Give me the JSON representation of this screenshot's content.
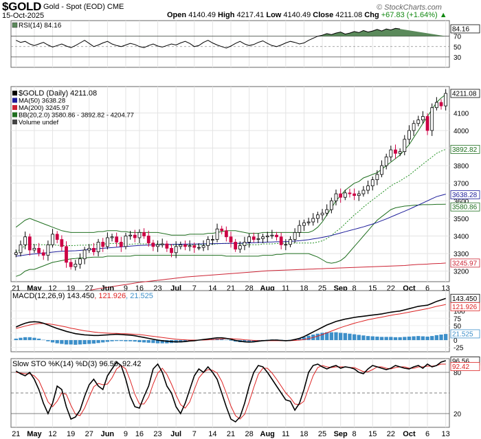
{
  "header": {
    "symbol": "$GOLD",
    "description": "Gold - Spot (EOD)",
    "exchange": "CME",
    "date": "15-Oct-2025",
    "open_label": "Open",
    "open": "4140.49",
    "high_label": "High",
    "high": "4217.41",
    "low_label": "Low",
    "low": "4140.49",
    "close_label": "Close",
    "close": "4211.08",
    "chg_label": "Chg",
    "chg": "+67.83 (+1.64%)",
    "watermark": "© StockCharts.com"
  },
  "colors": {
    "up": "#000000",
    "down": "#cc0044",
    "ma50": "#1a1a99",
    "ma200": "#cc2233",
    "bb": "#1e6e1e",
    "bbmid": "#1e8e1e",
    "rsi": "#000000",
    "rsi_fill": "#5b8a5b",
    "macd": "#000000",
    "signal": "#dd2222",
    "hist": "#3d8fc9",
    "stok": "#000000",
    "stod": "#dd2222"
  },
  "chart_data": [
    {
      "type": "line",
      "panel": "rsi",
      "legend": "RSI(14) 84.16",
      "current": "84.16",
      "y_ticks": [
        "70",
        "50",
        "30"
      ],
      "levels": [
        70,
        30
      ],
      "ylim": [
        10,
        100
      ],
      "values": [
        62,
        58,
        60,
        55,
        52,
        55,
        58,
        53,
        49,
        52,
        55,
        51,
        48,
        52,
        57,
        62,
        56,
        50,
        53,
        57,
        60,
        55,
        52,
        50,
        53,
        56,
        54,
        50,
        48,
        52,
        55,
        51,
        49,
        52,
        55,
        53,
        57,
        60,
        56,
        50,
        52,
        58,
        62,
        57,
        53,
        50,
        47,
        51,
        56,
        60,
        55,
        52,
        54,
        58,
        61,
        56,
        52,
        50,
        53,
        57,
        60,
        58,
        55,
        57,
        62,
        66,
        70,
        72,
        75,
        73,
        76,
        78,
        74,
        76,
        79,
        77,
        81,
        78,
        80,
        83,
        80,
        84,
        82,
        85,
        84
      ]
    },
    {
      "type": "candlestick",
      "panel": "price",
      "legend": [
        "$GOLD (Daily) 4211.08",
        "MA(50) 3638.28",
        "MA(200) 3245.97",
        "BB(20,2.0) 3580.86 - 3892.82 - 4204.77",
        "Volume undef"
      ],
      "y_ticks": [
        "4100",
        "4000",
        "3900",
        "3800",
        "3700",
        "3600",
        "3500",
        "3400",
        "3300",
        "3200"
      ],
      "tags": {
        "close": "4211.08",
        "bb_mid": "3892.82",
        "ma50": "3638.28",
        "bb_low": "3580.86",
        "ma200": "3245.97"
      },
      "ylim": [
        3140,
        4250
      ],
      "x_labels": [
        "21",
        "May",
        "12",
        "19",
        "27",
        "Jun",
        "9",
        "16",
        "23",
        "Jul",
        "7",
        "14",
        "21",
        "28",
        "Aug",
        "11",
        "18",
        "25",
        "Sep",
        "8",
        "15",
        "22",
        "Oct",
        "6",
        "13"
      ],
      "close": [
        3305,
        3350,
        3395,
        3320,
        3330,
        3305,
        3290,
        3350,
        3410,
        3380,
        3340,
        3250,
        3225,
        3240,
        3270,
        3320,
        3330,
        3310,
        3365,
        3340,
        3390,
        3395,
        3365,
        3340,
        3400,
        3405,
        3390,
        3420,
        3400,
        3360,
        3340,
        3350,
        3355,
        3330,
        3305,
        3340,
        3350,
        3340,
        3345,
        3335,
        3335,
        3345,
        3380,
        3380,
        3440,
        3430,
        3395,
        3365,
        3325,
        3345,
        3365,
        3395,
        3380,
        3385,
        3395,
        3400,
        3405,
        3395,
        3350,
        3352,
        3380,
        3420,
        3460,
        3475,
        3480,
        3500,
        3520,
        3530,
        3550,
        3600,
        3640,
        3620,
        3645,
        3640,
        3630,
        3640,
        3660,
        3685,
        3720,
        3750,
        3800,
        3850,
        3890,
        3870,
        3880,
        3950,
        4000,
        4040,
        4060,
        4080,
        4000,
        4130,
        4160,
        4140,
        4211
      ],
      "ma50": [
        3285,
        3288,
        3292,
        3295,
        3298,
        3300,
        3302,
        3305,
        3308,
        3311,
        3313,
        3314,
        3315,
        3316,
        3318,
        3320,
        3323,
        3325,
        3328,
        3330,
        3332,
        3334,
        3336,
        3338,
        3340,
        3342,
        3344,
        3346,
        3347,
        3348,
        3349,
        3350,
        3351,
        3352,
        3352,
        3353,
        3353,
        3354,
        3354,
        3354,
        3355,
        3355,
        3356,
        3356,
        3357,
        3357,
        3358,
        3358,
        3358,
        3359,
        3360,
        3361,
        3362,
        3363,
        3364,
        3365,
        3366,
        3367,
        3367,
        3368,
        3369,
        3371,
        3373,
        3376,
        3379,
        3383,
        3387,
        3392,
        3397,
        3403,
        3410,
        3417,
        3424,
        3431,
        3438,
        3445,
        3452,
        3460,
        3468,
        3477,
        3487,
        3497,
        3508,
        3519,
        3530,
        3541,
        3552,
        3564,
        3576,
        3588,
        3600,
        3612,
        3624,
        3631,
        3638
      ],
      "ma200": [
        3000,
        3006,
        3012,
        3018,
        3024,
        3030,
        3036,
        3042,
        3048,
        3054,
        3060,
        3065,
        3070,
        3075,
        3080,
        3085,
        3090,
        3095,
        3100,
        3104,
        3108,
        3112,
        3116,
        3120,
        3124,
        3128,
        3132,
        3136,
        3139,
        3142,
        3145,
        3148,
        3151,
        3154,
        3157,
        3160,
        3163,
        3166,
        3168,
        3170,
        3172,
        3174,
        3176,
        3178,
        3180,
        3182,
        3184,
        3186,
        3188,
        3190,
        3192,
        3194,
        3196,
        3198,
        3200,
        3202,
        3203,
        3204,
        3205,
        3206,
        3207,
        3208,
        3209,
        3210,
        3211,
        3212,
        3213,
        3214,
        3215,
        3216,
        3217,
        3218,
        3219,
        3220,
        3221,
        3222,
        3223,
        3224,
        3225,
        3226,
        3227,
        3228,
        3229,
        3230,
        3231,
        3232,
        3234,
        3236,
        3238,
        3239,
        3240,
        3242,
        3243,
        3244,
        3246
      ],
      "bb_upper": [
        3450,
        3470,
        3490,
        3500,
        3490,
        3480,
        3470,
        3460,
        3450,
        3440,
        3430,
        3425,
        3420,
        3420,
        3420,
        3420,
        3420,
        3420,
        3425,
        3425,
        3430,
        3430,
        3430,
        3425,
        3425,
        3420,
        3420,
        3420,
        3420,
        3420,
        3420,
        3420,
        3415,
        3410,
        3405,
        3405,
        3405,
        3405,
        3410,
        3410,
        3410,
        3410,
        3415,
        3415,
        3420,
        3425,
        3430,
        3430,
        3430,
        3425,
        3420,
        3415,
        3415,
        3415,
        3420,
        3420,
        3420,
        3420,
        3420,
        3420,
        3420,
        3420,
        3420,
        3420,
        3420,
        3430,
        3450,
        3480,
        3520,
        3560,
        3600,
        3630,
        3660,
        3680,
        3700,
        3710,
        3730,
        3740,
        3750,
        3760,
        3780,
        3800,
        3820,
        3840,
        3860,
        3890,
        3920,
        3960,
        4000,
        4040,
        4080,
        4120,
        4160,
        4185,
        4205
      ],
      "bb_lower": [
        3170,
        3180,
        3200,
        3210,
        3210,
        3220,
        3230,
        3240,
        3250,
        3255,
        3260,
        3265,
        3270,
        3272,
        3275,
        3275,
        3278,
        3280,
        3280,
        3280,
        3285,
        3285,
        3285,
        3285,
        3285,
        3285,
        3290,
        3290,
        3290,
        3290,
        3290,
        3290,
        3290,
        3290,
        3290,
        3290,
        3290,
        3290,
        3290,
        3290,
        3290,
        3290,
        3290,
        3290,
        3290,
        3290,
        3285,
        3285,
        3285,
        3285,
        3285,
        3285,
        3285,
        3285,
        3290,
        3290,
        3290,
        3295,
        3295,
        3300,
        3300,
        3300,
        3300,
        3300,
        3300,
        3290,
        3280,
        3265,
        3250,
        3245,
        3250,
        3260,
        3280,
        3310,
        3340,
        3370,
        3400,
        3430,
        3460,
        3490,
        3510,
        3530,
        3550,
        3560,
        3565,
        3570,
        3572,
        3575,
        3576,
        3578,
        3578,
        3579,
        3580,
        3580,
        3581
      ]
    },
    {
      "type": "line",
      "panel": "macd",
      "legend": [
        "MACD(12,26,9) 143.450",
        "121.926",
        "21.525"
      ],
      "tags": {
        "macd": "143.450",
        "signal": "121.926",
        "hist": "21.525"
      },
      "y_ticks": [
        "100",
        "75",
        "50",
        "25",
        "0",
        "-25"
      ],
      "ylim": [
        -40,
        170
      ],
      "macd": [
        45,
        52,
        58,
        62,
        63,
        62,
        58,
        52,
        46,
        40,
        35,
        30,
        26,
        22,
        20,
        18,
        17,
        16,
        16,
        17,
        18,
        19,
        20,
        19,
        18,
        17,
        15,
        12,
        9,
        6,
        3,
        0,
        -2,
        -4,
        -5,
        -6,
        -6,
        -5,
        -3,
        -2,
        0,
        2,
        4,
        6,
        8,
        8,
        6,
        3,
        -1,
        -4,
        -6,
        -7,
        -6,
        -4,
        -2,
        -1,
        0,
        0,
        -1,
        -2,
        -1,
        2,
        6,
        12,
        20,
        28,
        36,
        44,
        52,
        58,
        64,
        68,
        72,
        75,
        78,
        80,
        82,
        84,
        86,
        88,
        90,
        93,
        96,
        98,
        100,
        104,
        108,
        112,
        116,
        118,
        120,
        126,
        133,
        138,
        143
      ],
      "signal": [
        40,
        44,
        48,
        52,
        55,
        57,
        57,
        56,
        54,
        51,
        48,
        45,
        41,
        38,
        35,
        32,
        30,
        28,
        26,
        25,
        24,
        23,
        23,
        22,
        22,
        21,
        20,
        19,
        17,
        15,
        13,
        11,
        9,
        7,
        5,
        3,
        2,
        1,
        0,
        0,
        0,
        0,
        1,
        2,
        3,
        4,
        5,
        5,
        4,
        3,
        1,
        0,
        -1,
        -2,
        -2,
        -2,
        -2,
        -2,
        -2,
        -2,
        -2,
        -1,
        0,
        2,
        5,
        9,
        14,
        19,
        25,
        31,
        37,
        43,
        48,
        53,
        58,
        62,
        66,
        70,
        73,
        76,
        79,
        82,
        85,
        88,
        90,
        93,
        96,
        99,
        102,
        105,
        108,
        112,
        116,
        119,
        122
      ]
    },
    {
      "type": "line",
      "panel": "stochastic",
      "legend": [
        "Slow STO %K(14) %D(3) 96.56, 92.42"
      ],
      "tags": {
        "k": "96.56",
        "d": "92.42"
      },
      "y_ticks": [
        "80",
        "20"
      ],
      "levels": [
        80,
        50,
        20
      ],
      "ylim": [
        0,
        100
      ],
      "k": [
        82,
        78,
        75,
        80,
        70,
        55,
        35,
        20,
        35,
        60,
        55,
        30,
        12,
        15,
        25,
        45,
        62,
        70,
        60,
        55,
        75,
        85,
        95,
        90,
        70,
        45,
        30,
        28,
        45,
        60,
        85,
        92,
        80,
        60,
        50,
        30,
        20,
        35,
        55,
        75,
        85,
        80,
        88,
        80,
        70,
        50,
        30,
        12,
        8,
        15,
        35,
        60,
        80,
        90,
        88,
        80,
        70,
        60,
        50,
        40,
        38,
        25,
        35,
        55,
        80,
        90,
        92,
        88,
        85,
        88,
        90,
        86,
        88,
        87,
        85,
        80,
        78,
        85,
        90,
        88,
        86,
        84,
        86,
        90,
        88,
        86,
        85,
        88,
        90,
        86,
        92,
        88,
        90,
        95,
        97
      ],
      "d": [
        80,
        79,
        78,
        78,
        75,
        68,
        53,
        37,
        30,
        38,
        50,
        48,
        32,
        19,
        17,
        28,
        44,
        59,
        64,
        62,
        63,
        72,
        85,
        90,
        85,
        68,
        48,
        34,
        34,
        44,
        63,
        79,
        86,
        77,
        63,
        47,
        33,
        28,
        37,
        55,
        72,
        80,
        84,
        83,
        79,
        67,
        50,
        31,
        17,
        12,
        19,
        37,
        58,
        77,
        86,
        86,
        79,
        70,
        60,
        50,
        43,
        34,
        33,
        38,
        57,
        75,
        87,
        90,
        88,
        87,
        88,
        88,
        88,
        87,
        87,
        84,
        81,
        81,
        84,
        88,
        88,
        86,
        85,
        87,
        88,
        88,
        86,
        86,
        88,
        88,
        89,
        89,
        90,
        92,
        92
      ]
    }
  ]
}
